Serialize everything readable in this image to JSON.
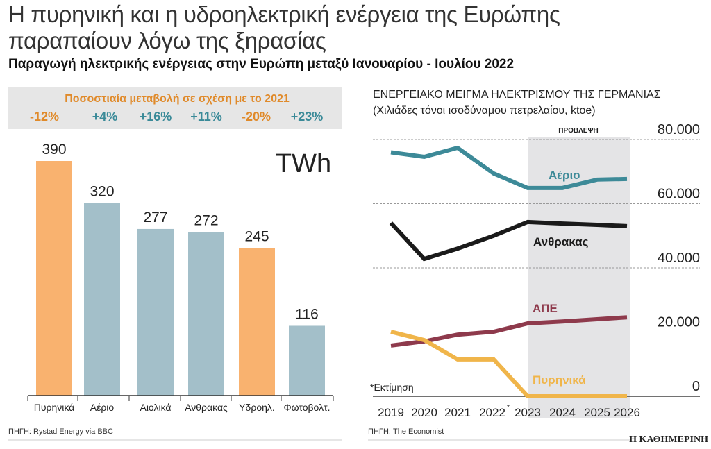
{
  "header": {
    "title_line1": "Η πυρηνική και η υδροηλεκτρική ενέργεια της Ευρώπης",
    "title_line2": "παραπαίουν λόγω της ξηρασίας",
    "subtitle": "Παραγωγή ηλεκτρικής ενέργειας στην Ευρώπη μεταξύ Ιανουαρίου - Ιουλίου 2022"
  },
  "chart_data": [
    {
      "type": "bar",
      "unit": "TWh",
      "change_header": "Ποσοστιαία μεταβολή σε σχέση με το 2021",
      "categories": [
        "Πυρηνικά",
        "Αέριο",
        "Αιολικά",
        "Ανθρακας",
        "Υδροηλ.",
        "Φωτοβολτ."
      ],
      "values": [
        390,
        320,
        277,
        272,
        245,
        116
      ],
      "changes": [
        "-12%",
        "+4%",
        "+16%",
        "+11%",
        "-20%",
        "+23%"
      ],
      "colors": [
        "#f9b26f",
        "#a3bfc9",
        "#a3bfc9",
        "#a3bfc9",
        "#f9b26f",
        "#a3bfc9"
      ],
      "change_colors": [
        "#e08a2a",
        "#3a8a98",
        "#3a8a98",
        "#3a8a98",
        "#e08a2a",
        "#3a8a98"
      ],
      "source": "ΠΗΓΗ: Rystad Energy via BBC"
    },
    {
      "type": "line",
      "title": "ΕΝΕΡΓΕΙΑΚΟ ΜΕΙΓΜΑ ΗΛΕΚΤΡΙΣΜΟΥ ΤΗΣ ΓΕΡΜΑΝΙΑΣ",
      "subtitle": "(Χιλιάδες τόνοι ισοδύναμου πετρελαίου, ktoe)",
      "x": [
        2019,
        2020,
        2021,
        2022,
        2023,
        2024,
        2025,
        2026
      ],
      "x_tick_labels": [
        "2019",
        "2020",
        "2021",
        "2022*",
        "2023",
        "2024",
        "2025",
        "2026"
      ],
      "ylim": [
        0,
        80000
      ],
      "y_ticks": [
        0,
        20000,
        40000,
        60000,
        80000
      ],
      "y_tick_labels": [
        "0",
        "20.000",
        "40.000",
        "60.000",
        "80.000"
      ],
      "grid": "dashed horizontal",
      "forecast_label": "ΠΡΟΒΛΕΨΗ",
      "forecast_range": [
        2023,
        2026
      ],
      "footnote": "*Εκτίμηση",
      "series": [
        {
          "name": "Αέριο",
          "color": "#3d8a98",
          "values": [
            76000,
            74600,
            77400,
            69400,
            64900,
            64900,
            67500,
            67700
          ]
        },
        {
          "name": "Ανθρακας",
          "color": "#1a1a1a",
          "values": [
            54000,
            42800,
            46000,
            50000,
            54300,
            53800,
            53400,
            53000
          ]
        },
        {
          "name": "ΑΠΕ",
          "color": "#8e3a4c",
          "values": [
            15800,
            17100,
            19200,
            20100,
            22700,
            23300,
            24000,
            24600
          ]
        },
        {
          "name": "Πυρηνικά",
          "color": "#f0b54a",
          "values": [
            20100,
            17500,
            11500,
            11500,
            0,
            0,
            0,
            0
          ]
        }
      ],
      "source": "ΠΗΓΗ: The Economist"
    }
  ],
  "footer": {
    "brand": "Η ΚΑΘΗΜΕΡΙΝΗ"
  }
}
